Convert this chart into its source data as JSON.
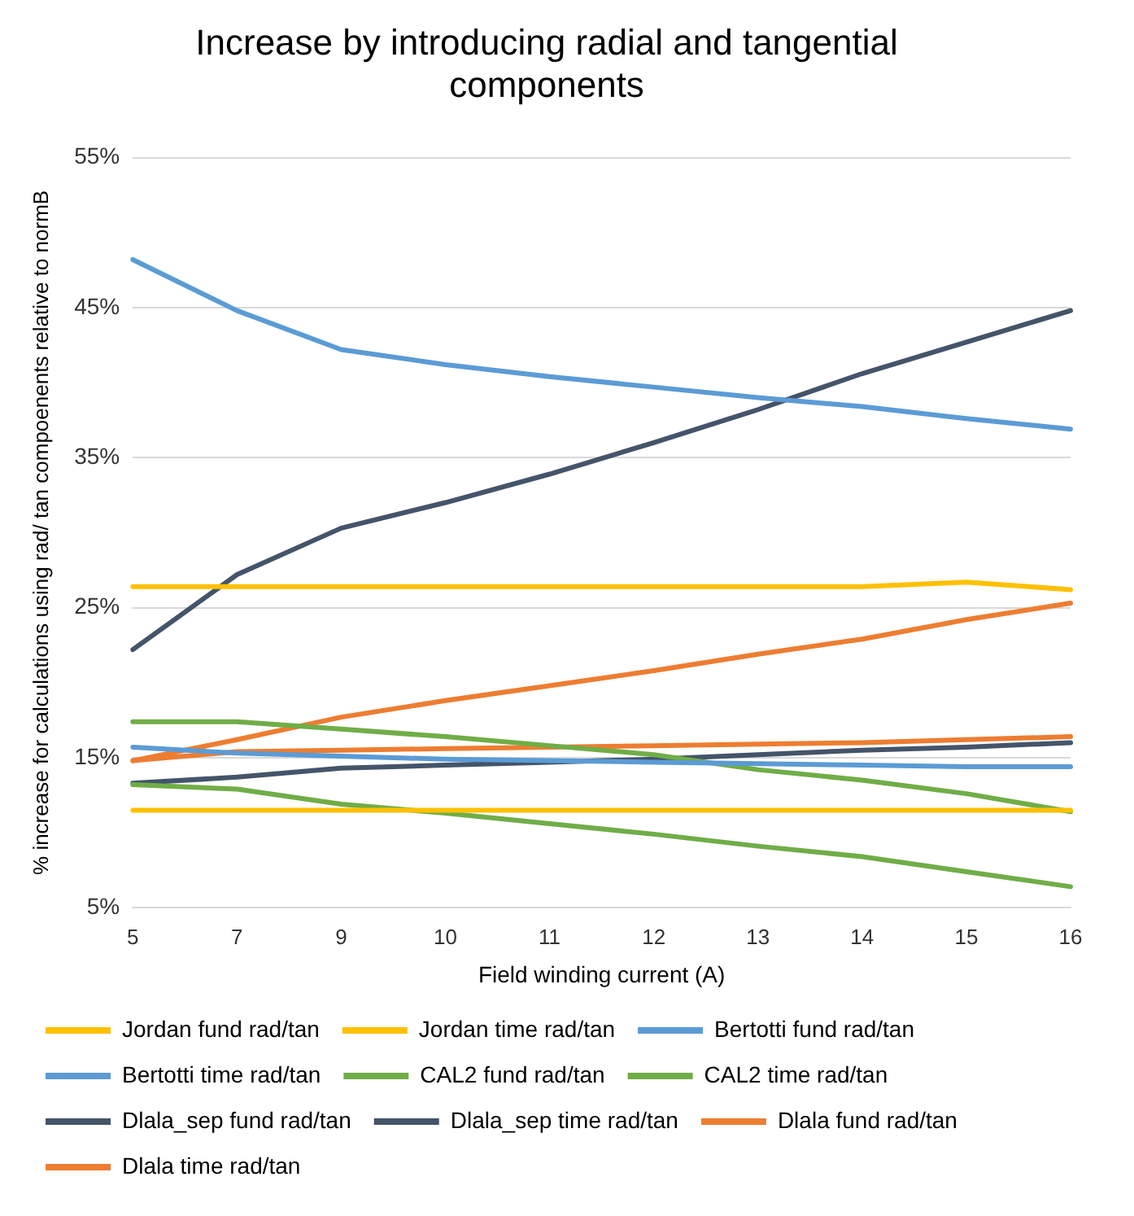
{
  "chart_data": {
    "type": "line",
    "title": [
      "Increase by introducing radial and tangential",
      "components"
    ],
    "xlabel": "Field winding current (A)",
    "ylabel": "% increase for calculations using rad/ tan compoenents relative to normB",
    "categories": [
      "5",
      "7",
      "9",
      "10",
      "11",
      "12",
      "13",
      "14",
      "15",
      "16"
    ],
    "series": [
      {
        "name": "Jordan fund rad/tan",
        "color": "#ffc000",
        "values": [
          11.5,
          11.5,
          11.5,
          11.5,
          11.5,
          11.5,
          11.5,
          11.5,
          11.5,
          11.5
        ]
      },
      {
        "name": "Jordan time rad/tan",
        "color": "#ffc000",
        "values": [
          26.4,
          26.4,
          26.4,
          26.4,
          26.4,
          26.4,
          26.4,
          26.4,
          26.7,
          26.2
        ]
      },
      {
        "name": "Bertotti fund rad/tan",
        "color": "#5b9bd5",
        "values": [
          15.7,
          15.3,
          15.1,
          14.9,
          14.8,
          14.7,
          14.6,
          14.5,
          14.4,
          14.4
        ]
      },
      {
        "name": "Bertotti time rad/tan",
        "color": "#5b9bd5",
        "values": [
          48.2,
          44.8,
          42.2,
          41.2,
          40.4,
          39.7,
          39.0,
          38.4,
          37.6,
          36.9
        ]
      },
      {
        "name": "CAL2 fund rad/tan",
        "color": "#70ad47",
        "values": [
          13.2,
          12.9,
          11.9,
          11.3,
          10.6,
          9.9,
          9.1,
          8.4,
          7.4,
          6.4
        ]
      },
      {
        "name": "CAL2 time rad/tan",
        "color": "#70ad47",
        "values": [
          17.4,
          17.4,
          16.9,
          16.4,
          15.8,
          15.2,
          14.2,
          13.5,
          12.6,
          11.4
        ]
      },
      {
        "name": "Dlala_sep fund rad/tan",
        "color": "#44546a",
        "values": [
          13.3,
          13.7,
          14.3,
          14.5,
          14.7,
          14.9,
          15.2,
          15.5,
          15.7,
          16.0
        ]
      },
      {
        "name": "Dlala_sep time rad/tan",
        "color": "#44546a",
        "values": [
          22.2,
          27.2,
          30.3,
          32.0,
          33.9,
          36.0,
          38.2,
          40.6,
          42.7,
          44.8
        ]
      },
      {
        "name": "Dlala fund rad/tan",
        "color": "#ed7d31",
        "values": [
          14.8,
          15.4,
          15.5,
          15.6,
          15.7,
          15.8,
          15.9,
          16.0,
          16.2,
          16.4
        ]
      },
      {
        "name": "Dlala time rad/tan",
        "color": "#ed7d31",
        "values": [
          14.8,
          16.2,
          17.7,
          18.8,
          19.8,
          20.8,
          21.9,
          22.9,
          24.2,
          25.3
        ]
      }
    ],
    "ylim": [
      5,
      55
    ],
    "yticks": [
      {
        "value": 5,
        "label": "5%"
      },
      {
        "value": 15,
        "label": "15%"
      },
      {
        "value": 25,
        "label": "25%"
      },
      {
        "value": 35,
        "label": "35%"
      },
      {
        "value": 45,
        "label": "45%"
      },
      {
        "value": 55,
        "label": "55%"
      }
    ],
    "grid": "y",
    "legend": "bottom",
    "marker": "none"
  }
}
